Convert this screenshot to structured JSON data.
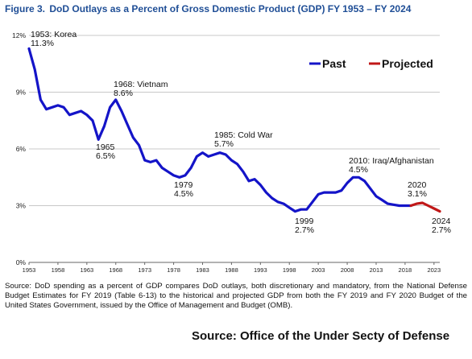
{
  "figure": {
    "number": "Figure 3.",
    "title": "DoD Outlays as a Percent of Gross Domestic Product (GDP) FY 1953 – FY 2024"
  },
  "chart_data": {
    "type": "line",
    "title": "DoD Outlays as a Percent of Gross Domestic Product (GDP) FY 1953 – FY 2024",
    "xlabel": "",
    "ylabel": "",
    "xlim": [
      1953,
      2024
    ],
    "ylim": [
      0,
      12
    ],
    "grid": true,
    "legend_position": "top-right",
    "y_ticks": [
      {
        "value": 0,
        "label": "0%"
      },
      {
        "value": 3,
        "label": "3%"
      },
      {
        "value": 6,
        "label": "6%"
      },
      {
        "value": 9,
        "label": "9%"
      },
      {
        "value": 12,
        "label": "12%"
      }
    ],
    "x_ticks": [
      {
        "value": 1953,
        "label": "1953"
      },
      {
        "value": 1958,
        "label": "1958"
      },
      {
        "value": 1963,
        "label": "1963"
      },
      {
        "value": 1968,
        "label": "1968"
      },
      {
        "value": 1973,
        "label": "1973"
      },
      {
        "value": 1978,
        "label": "1978"
      },
      {
        "value": 1983,
        "label": "1983"
      },
      {
        "value": 1988,
        "label": "1988"
      },
      {
        "value": 1993,
        "label": "1993"
      },
      {
        "value": 1998,
        "label": "1998"
      },
      {
        "value": 2003,
        "label": "2003"
      },
      {
        "value": 2008,
        "label": "2008"
      },
      {
        "value": 2013,
        "label": "2013"
      },
      {
        "value": 2018,
        "label": "2018"
      },
      {
        "value": 2023,
        "label": "2023"
      }
    ],
    "series": [
      {
        "name": "Past",
        "color": "#1414c8",
        "x": [
          1953,
          1954,
          1955,
          1956,
          1957,
          1958,
          1959,
          1960,
          1961,
          1962,
          1963,
          1964,
          1965,
          1966,
          1967,
          1968,
          1969,
          1970,
          1971,
          1972,
          1973,
          1974,
          1975,
          1976,
          1977,
          1978,
          1979,
          1980,
          1981,
          1982,
          1983,
          1984,
          1985,
          1986,
          1987,
          1988,
          1989,
          1990,
          1991,
          1992,
          1993,
          1994,
          1995,
          1996,
          1997,
          1998,
          1999,
          2000,
          2001,
          2002,
          2003,
          2004,
          2005,
          2006,
          2007,
          2008,
          2009,
          2010,
          2011,
          2012,
          2013,
          2014,
          2015,
          2016,
          2017,
          2018,
          2019
        ],
        "values": [
          11.3,
          10.2,
          8.6,
          8.1,
          8.2,
          8.3,
          8.2,
          7.8,
          7.9,
          8.0,
          7.8,
          7.5,
          6.5,
          7.2,
          8.2,
          8.6,
          8.0,
          7.3,
          6.6,
          6.2,
          5.4,
          5.3,
          5.4,
          5.0,
          4.8,
          4.6,
          4.5,
          4.6,
          5.0,
          5.6,
          5.8,
          5.6,
          5.7,
          5.8,
          5.7,
          5.4,
          5.2,
          4.8,
          4.3,
          4.4,
          4.1,
          3.7,
          3.4,
          3.2,
          3.1,
          2.9,
          2.7,
          2.8,
          2.8,
          3.2,
          3.6,
          3.7,
          3.7,
          3.7,
          3.8,
          4.2,
          4.5,
          4.5,
          4.3,
          3.9,
          3.5,
          3.3,
          3.1,
          3.05,
          3.0,
          3.0,
          3.0
        ]
      },
      {
        "name": "Projected",
        "color": "#c01818",
        "x": [
          2019,
          2020,
          2021,
          2022,
          2023,
          2024
        ],
        "values": [
          3.0,
          3.1,
          3.15,
          3.0,
          2.85,
          2.7
        ]
      }
    ],
    "annotations": [
      {
        "year": "1953: Korea",
        "value": "11.3%"
      },
      {
        "year": "1968: Vietnam",
        "value": "8.6%"
      },
      {
        "year": "1965",
        "value": "6.5%"
      },
      {
        "year": "1985: Cold War",
        "value": "5.7%"
      },
      {
        "year": "1979",
        "value": "4.5%"
      },
      {
        "year": "2010: Iraq/Afghanistan",
        "value": "4.5%"
      },
      {
        "year": "1999",
        "value": "2.7%"
      },
      {
        "year": "2020",
        "value": "3.1%"
      },
      {
        "year": "2024",
        "value": "2.7%"
      }
    ]
  },
  "note": "Source: DoD spending as a percent of GDP compares DoD outlays, both discretionary and mandatory, from the National Defense Budget Estimates for FY 2019 (Table 6-13) to the historical and projected GDP from both the FY 2019 and FY 2020 Budget of the United States Government, issued by the Office of Management and Budget (OMB).",
  "footer": "Source: Office of the Under Secty of Defense"
}
